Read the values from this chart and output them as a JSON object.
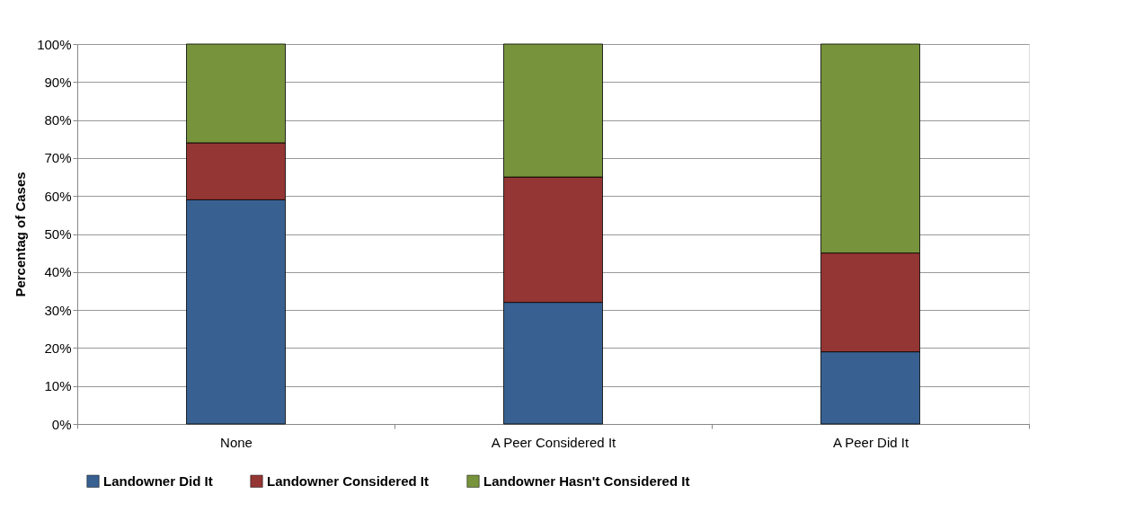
{
  "chart_data": {
    "type": "bar",
    "stacked": true,
    "ylabel": "Percentag of Cases",
    "categories": [
      "None",
      "A Peer Considered It",
      "A Peer Did It"
    ],
    "series": [
      {
        "name": "Landowner Did It",
        "color": "#386192",
        "values": [
          59,
          32,
          19
        ]
      },
      {
        "name": "Landowner Considered It",
        "color": "#943634",
        "values": [
          15,
          33,
          26
        ]
      },
      {
        "name": "Landowner Hasn't Considered It",
        "color": "#77933c",
        "values": [
          26,
          35,
          55
        ]
      }
    ],
    "ylim": [
      0,
      100
    ],
    "yticks": [
      {
        "value": 0,
        "label": "0%"
      },
      {
        "value": 10,
        "label": "10%"
      },
      {
        "value": 20,
        "label": "20%"
      },
      {
        "value": 30,
        "label": "30%"
      },
      {
        "value": 40,
        "label": "40%"
      },
      {
        "value": 50,
        "label": "50%"
      },
      {
        "value": 60,
        "label": "60%"
      },
      {
        "value": 70,
        "label": "70%"
      },
      {
        "value": 80,
        "label": "80%"
      },
      {
        "value": 90,
        "label": "90%"
      },
      {
        "value": 100,
        "label": "100%"
      }
    ],
    "grid": "y",
    "legend": "bottom"
  }
}
